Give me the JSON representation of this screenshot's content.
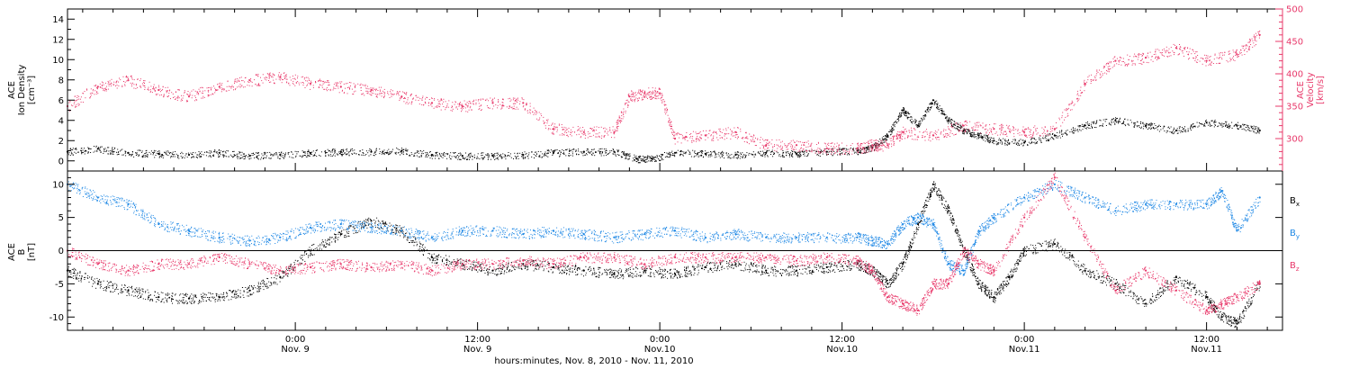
{
  "colors": {
    "black": "#000000",
    "pink": "#e8386a",
    "blue": "#1e88e5"
  },
  "labels": {
    "top_left": [
      "ACE",
      "Ion Density",
      "[cm⁻³]"
    ],
    "top_right": [
      "ACE",
      "Velocity",
      "[km/s]"
    ],
    "bottom_left": [
      "ACE",
      "B",
      "[nT]"
    ],
    "xlabel": "hours:minutes, Nov.  8, 2010 - Nov. 11, 2010",
    "legend": [
      "Bx",
      "By",
      "Bz"
    ]
  },
  "chart_data": [
    {
      "type": "scatter",
      "panel": "top",
      "xlabel": "hours:minutes, Nov.  8, 2010 - Nov. 11, 2010",
      "x_ticks": [
        "0:00|Nov. 9",
        "12:00|Nov. 9",
        "0:00|Nov.10",
        "12:00|Nov.10",
        "0:00|Nov.11",
        "12:00|Nov.11"
      ],
      "x_tick_hours": [
        0,
        12,
        24,
        36,
        48,
        60
      ],
      "xlim_hours": [
        -15,
        65
      ],
      "ylim_left": [
        -1,
        15
      ],
      "ylim_right": [
        250,
        500
      ],
      "y_ticks_left": [
        0,
        2,
        4,
        6,
        8,
        10,
        12,
        14
      ],
      "y_ticks_right": [
        300,
        350,
        400,
        450,
        500
      ],
      "series": [
        {
          "name": "Ion Density",
          "axis": "left",
          "color": "black",
          "x": [
            -15,
            -13,
            -11,
            -9,
            -7,
            -5,
            -3,
            -1,
            1,
            3,
            5,
            7,
            9,
            11,
            13,
            15,
            17,
            19,
            21,
            22.5,
            23.5,
            25,
            27,
            29,
            31,
            33,
            35,
            37,
            38,
            39,
            40,
            41,
            42,
            43,
            44,
            45,
            46,
            48,
            50,
            52,
            54,
            56,
            58,
            60,
            62,
            63.5
          ],
          "y": [
            0.9,
            1.2,
            0.8,
            0.7,
            0.6,
            0.8,
            0.5,
            0.6,
            0.8,
            0.9,
            0.9,
            1.0,
            0.6,
            0.5,
            0.5,
            0.6,
            0.8,
            0.9,
            0.9,
            0.2,
            0.2,
            0.8,
            0.7,
            0.6,
            0.8,
            0.7,
            0.9,
            1.0,
            1.3,
            2.5,
            5.0,
            3.5,
            6.0,
            4.0,
            3.0,
            2.5,
            2.0,
            1.8,
            2.5,
            3.5,
            4.0,
            3.5,
            3.0,
            3.8,
            3.5,
            3.0
          ]
        },
        {
          "name": "Velocity",
          "axis": "right",
          "color": "pink",
          "x": [
            -15,
            -13,
            -11,
            -9,
            -7,
            -5,
            -3,
            -1,
            1,
            3,
            5,
            7,
            9,
            11,
            13,
            15,
            17,
            19,
            21,
            22,
            23,
            24,
            25,
            27,
            29,
            31,
            33,
            35,
            37,
            38,
            39,
            40,
            42,
            44,
            46,
            48,
            50,
            52,
            54,
            56,
            58,
            60,
            62,
            63.5
          ],
          "y": [
            350,
            380,
            390,
            375,
            365,
            380,
            390,
            395,
            385,
            380,
            375,
            365,
            355,
            350,
            355,
            355,
            315,
            310,
            310,
            365,
            370,
            370,
            300,
            305,
            310,
            290,
            290,
            285,
            285,
            290,
            290,
            310,
            305,
            320,
            315,
            310,
            315,
            385,
            420,
            425,
            440,
            420,
            430,
            460
          ]
        }
      ]
    },
    {
      "type": "scatter",
      "panel": "bottom",
      "ylim": [
        -12,
        12
      ],
      "y_ticks": [
        -10,
        -5,
        0,
        5,
        10
      ],
      "series": [
        {
          "name": "Bx",
          "color": "black",
          "x": [
            -15,
            -13,
            -11,
            -9,
            -7,
            -5,
            -3,
            -1,
            1,
            3,
            5,
            7,
            9,
            11,
            13,
            15,
            17,
            19,
            21,
            23,
            25,
            27,
            29,
            31,
            33,
            35,
            37,
            38,
            39,
            40,
            41,
            42,
            43,
            44,
            45,
            46,
            47,
            48,
            50,
            52,
            54,
            56,
            58,
            60,
            61,
            62,
            63.5
          ],
          "y": [
            -3,
            -5,
            -6,
            -7,
            -7.2,
            -7,
            -6,
            -4,
            0,
            2.5,
            4.5,
            3,
            -1,
            -2,
            -3,
            -2,
            -2.5,
            -3,
            -3.5,
            -3,
            -3.5,
            -2.5,
            -2,
            -3,
            -3,
            -2.5,
            -2,
            -3,
            -5,
            -2,
            4,
            10,
            6,
            0,
            -5,
            -7,
            -4,
            0,
            1,
            -3,
            -5,
            -8,
            -4,
            -7,
            -10,
            -11,
            -5
          ]
        },
        {
          "name": "By",
          "color": "blue",
          "x": [
            -15,
            -13,
            -11,
            -9,
            -7,
            -5,
            -3,
            -1,
            1,
            3,
            5,
            7,
            9,
            11,
            13,
            15,
            17,
            19,
            21,
            23,
            25,
            27,
            29,
            31,
            33,
            35,
            37,
            38,
            39,
            40,
            41,
            42,
            43,
            44,
            45,
            46,
            48,
            50,
            52,
            54,
            56,
            58,
            60,
            61,
            62,
            63.5
          ],
          "y": [
            10,
            8,
            7,
            4,
            3,
            2,
            1.5,
            2,
            3.5,
            4,
            3.5,
            3,
            2,
            3,
            3,
            2.5,
            3,
            2.5,
            2,
            2.5,
            3,
            2,
            2.5,
            2,
            2,
            2,
            2,
            1.5,
            1,
            4,
            5,
            4,
            -2,
            -3,
            3,
            5,
            8,
            10,
            8,
            6,
            7,
            7,
            7,
            9,
            3,
            8
          ]
        },
        {
          "name": "Bz",
          "color": "pink",
          "x": [
            -15,
            -13,
            -11,
            -9,
            -7,
            -5,
            -3,
            -1,
            1,
            3,
            5,
            7,
            9,
            11,
            13,
            15,
            17,
            19,
            21,
            23,
            25,
            27,
            29,
            31,
            33,
            35,
            37,
            38,
            39,
            40,
            41,
            42,
            43,
            44,
            45,
            46,
            48,
            50,
            52,
            54,
            56,
            58,
            60,
            61,
            62,
            63.5
          ],
          "y": [
            0,
            -2,
            -3,
            -2,
            -2,
            -1,
            -2,
            -3,
            -2.5,
            -2,
            -2.5,
            -2,
            -3,
            -2,
            -2,
            -1.5,
            -2,
            -1,
            -1,
            -2,
            -1,
            -1,
            -1,
            -1,
            -1.5,
            -1,
            -1.5,
            -3,
            -7,
            -8,
            -9,
            -5,
            -5,
            0,
            -2,
            -3,
            5,
            11,
            2,
            -6,
            -3,
            -6,
            -9,
            -8,
            -7,
            -5
          ]
        }
      ]
    }
  ]
}
